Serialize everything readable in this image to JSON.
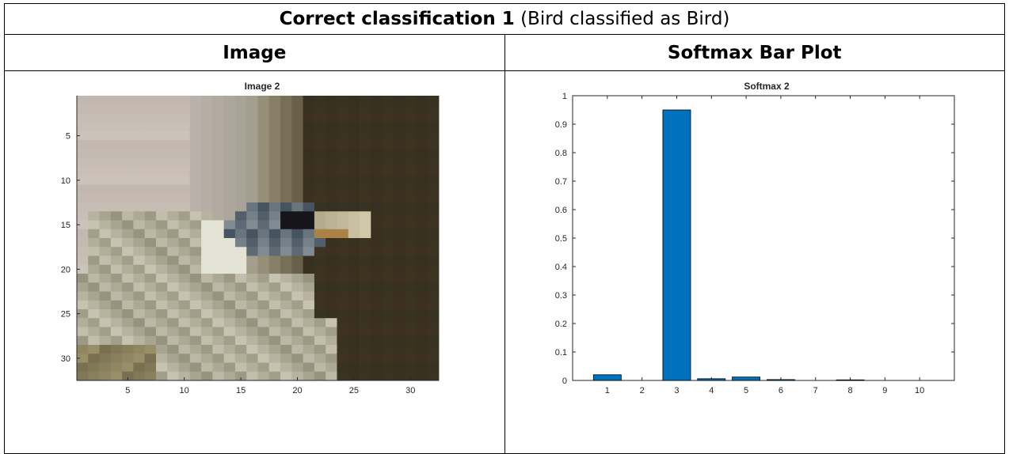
{
  "document": {
    "title_bold": "Correct classification 1",
    "title_rest": " (Bird classified as Bird)",
    "col_image": "Image",
    "col_softmax": "Softmax Bar Plot"
  },
  "colors": {
    "bar": "#0072BD",
    "axis": "#262626"
  },
  "chart_data": [
    {
      "type": "heatmap",
      "title": "Image 2",
      "xlim": [
        0.5,
        32.5
      ],
      "ylim": [
        0.5,
        32.5
      ],
      "y_reversed": true,
      "xticks": [
        5,
        10,
        15,
        20,
        25,
        30
      ],
      "yticks": [
        5,
        10,
        15,
        20,
        25,
        30
      ],
      "grid": false
    },
    {
      "type": "bar",
      "title": "Softmax 2",
      "categories": [
        1,
        2,
        3,
        4,
        5,
        6,
        7,
        8,
        9,
        10
      ],
      "values": [
        0.02,
        0.0,
        0.95,
        0.006,
        0.012,
        0.003,
        0.0,
        0.002,
        0.0,
        0.0
      ],
      "xlim": [
        0,
        11
      ],
      "ylim": [
        0,
        1
      ],
      "yticks": [
        0,
        0.1,
        0.2,
        0.3,
        0.4,
        0.5,
        0.6,
        0.7,
        0.8,
        0.9,
        1
      ],
      "grid": false
    }
  ]
}
